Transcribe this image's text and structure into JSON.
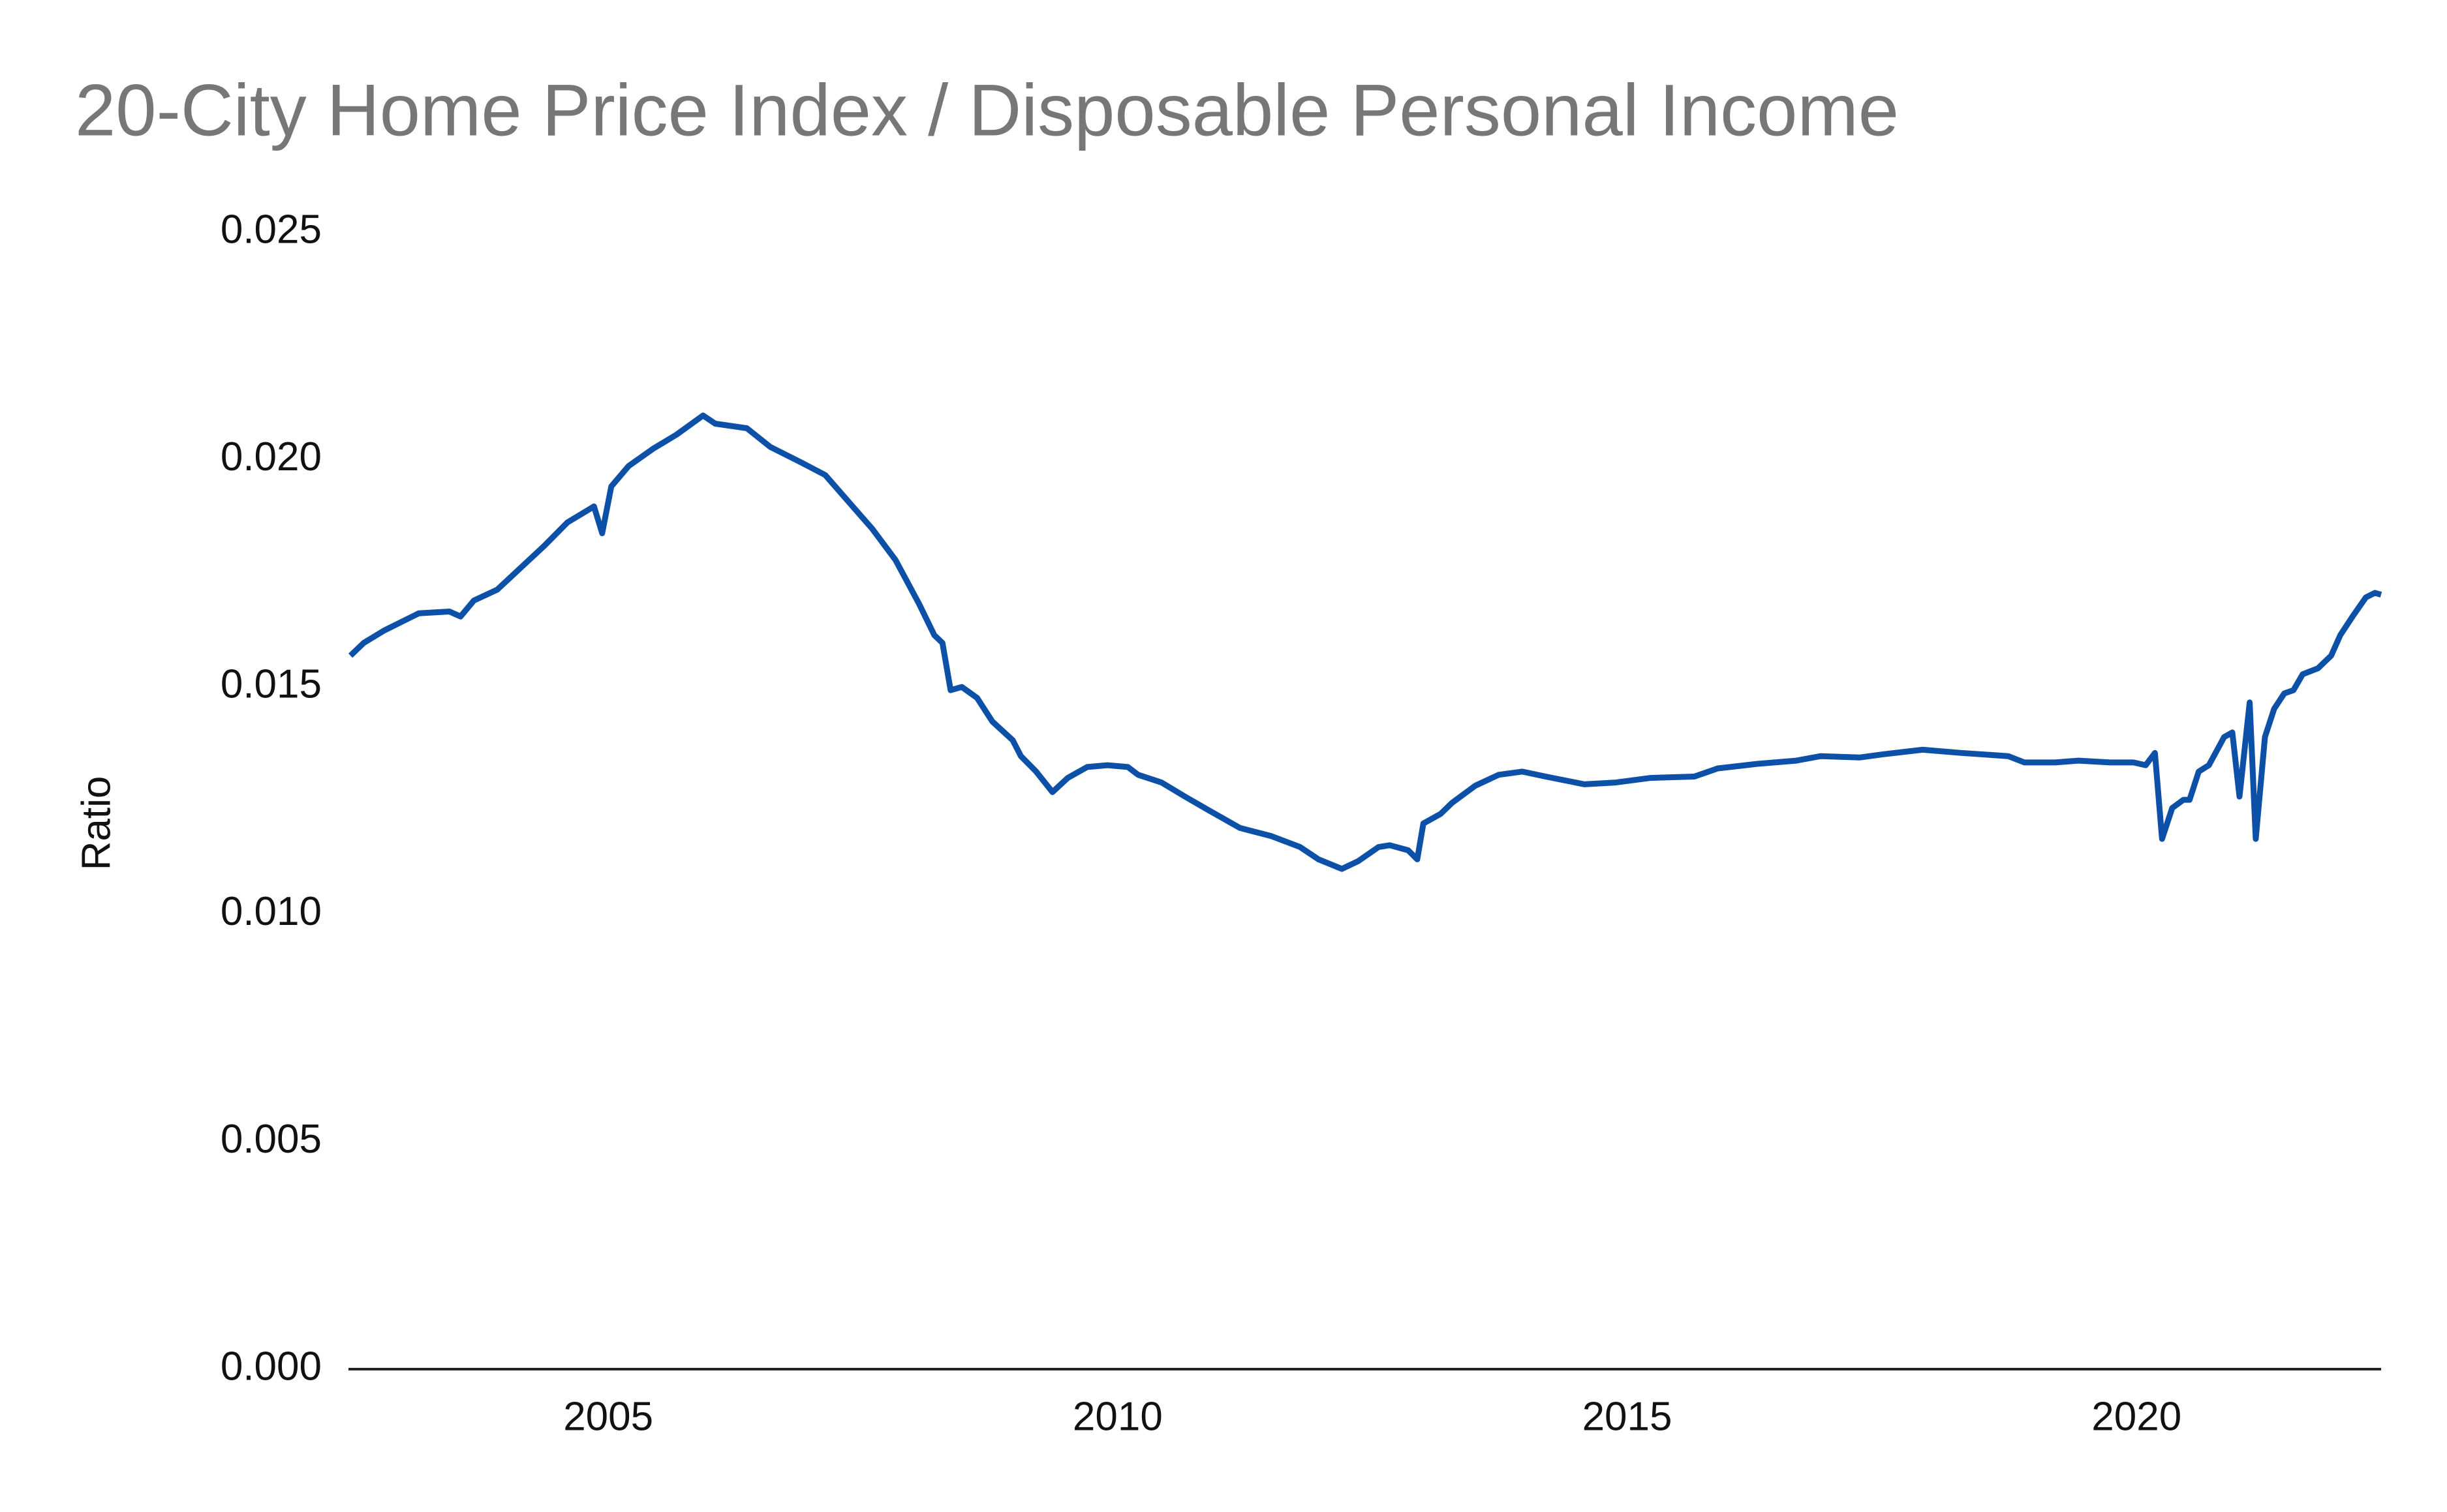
{
  "chart_data": {
    "type": "line",
    "title": "20-City Home Price Index / Disposable Personal Income",
    "y_label": "Ratio",
    "x": [
      2002.47,
      2002.6,
      2002.8,
      2003.14,
      2003.44,
      2003.55,
      2003.68,
      2003.91,
      2004.14,
      2004.37,
      2004.6,
      2004.86,
      2004.94,
      2005.03,
      2005.2,
      2005.44,
      2005.67,
      2005.93,
      2006.05,
      2006.36,
      2006.59,
      2006.9,
      2007.13,
      2007.36,
      2007.59,
      2007.82,
      2008.05,
      2008.2,
      2008.28,
      2008.36,
      2008.47,
      2008.62,
      2008.77,
      2008.97,
      2009.05,
      2009.2,
      2009.36,
      2009.51,
      2009.7,
      2009.9,
      2010.1,
      2010.2,
      2010.43,
      2010.66,
      2010.9,
      2011.2,
      2011.51,
      2011.79,
      2011.97,
      2012.2,
      2012.36,
      2012.56,
      2012.67,
      2012.85,
      2012.94,
      2013.0,
      2013.17,
      2013.28,
      2013.51,
      2013.74,
      2013.97,
      2014.2,
      2014.58,
      2014.89,
      2015.23,
      2015.66,
      2015.89,
      2016.28,
      2016.66,
      2016.9,
      2017.28,
      2017.51,
      2017.9,
      2018.28,
      2018.74,
      2018.9,
      2019.2,
      2019.43,
      2019.74,
      2019.97,
      2020.09,
      2020.18,
      2020.25,
      2020.35,
      2020.46,
      2020.52,
      2020.61,
      2020.71,
      2020.86,
      2020.94,
      2021.01,
      2021.11,
      2021.17,
      2021.26,
      2021.35,
      2021.45,
      2021.54,
      2021.63,
      2021.78,
      2021.91,
      2022.0,
      2022.12,
      2022.25,
      2022.34,
      2022.4
    ],
    "series": [
      {
        "name": "Ratio",
        "color": "#0d50a8",
        "values": [
          0.01569,
          0.01597,
          0.01624,
          0.01662,
          0.01666,
          0.01655,
          0.0169,
          0.01714,
          0.01762,
          0.0181,
          0.01862,
          0.01897,
          0.01838,
          0.01941,
          0.01986,
          0.02024,
          0.02055,
          0.02097,
          0.02079,
          0.02069,
          0.02028,
          0.01993,
          0.01966,
          0.01907,
          0.01848,
          0.01779,
          0.01683,
          0.01614,
          0.01597,
          0.01493,
          0.015,
          0.01476,
          0.01424,
          0.01383,
          0.01348,
          0.01314,
          0.01269,
          0.013,
          0.01324,
          0.01328,
          0.01324,
          0.01307,
          0.0129,
          0.01259,
          0.01228,
          0.0119,
          0.01172,
          0.01148,
          0.01121,
          0.011,
          0.01117,
          0.01148,
          0.01152,
          0.01141,
          0.01121,
          0.012,
          0.01221,
          0.01245,
          0.01283,
          0.01307,
          0.01314,
          0.01303,
          0.01286,
          0.0129,
          0.013,
          0.01303,
          0.01321,
          0.01331,
          0.01338,
          0.01348,
          0.01345,
          0.01352,
          0.01362,
          0.01355,
          0.01348,
          0.01334,
          0.01334,
          0.01338,
          0.01334,
          0.01334,
          0.01328,
          0.01355,
          0.01166,
          0.01234,
          0.01252,
          0.01252,
          0.01314,
          0.01328,
          0.0139,
          0.014,
          0.01259,
          0.01466,
          0.01166,
          0.0139,
          0.01452,
          0.01486,
          0.01493,
          0.01528,
          0.01541,
          0.01569,
          0.01614,
          0.01655,
          0.01697,
          0.01707,
          0.01703
        ]
      }
    ],
    "xlim": [
      2002.45,
      2022.4
    ],
    "xticks": [
      2005,
      2010,
      2015,
      2020
    ],
    "ylim": [
      0,
      0.025
    ],
    "yticks": [
      {
        "value": 0,
        "label": "0.000"
      },
      0.005,
      {
        "value": 0.01,
        "label": "0.010"
      },
      0.015,
      {
        "value": 0.02,
        "label": "0.020"
      },
      0.025
    ],
    "grid": false
  }
}
